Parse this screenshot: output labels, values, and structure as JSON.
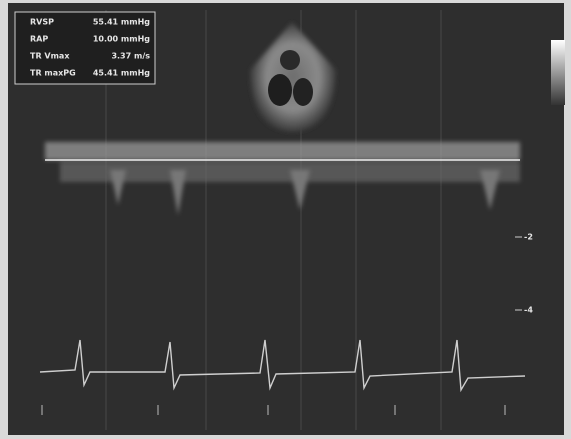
{
  "measurements": {
    "rows": [
      {
        "label": "RVSP",
        "value": "55.41 mmHg"
      },
      {
        "label": "RAP",
        "value": "10.00 mmHg"
      },
      {
        "label": "TR Vmax",
        "value": "3.37 m/s"
      },
      {
        "label": "TR maxPG",
        "value": "45.41 mmHg"
      }
    ]
  },
  "scale": {
    "labels": [
      "-2",
      "-4"
    ]
  }
}
